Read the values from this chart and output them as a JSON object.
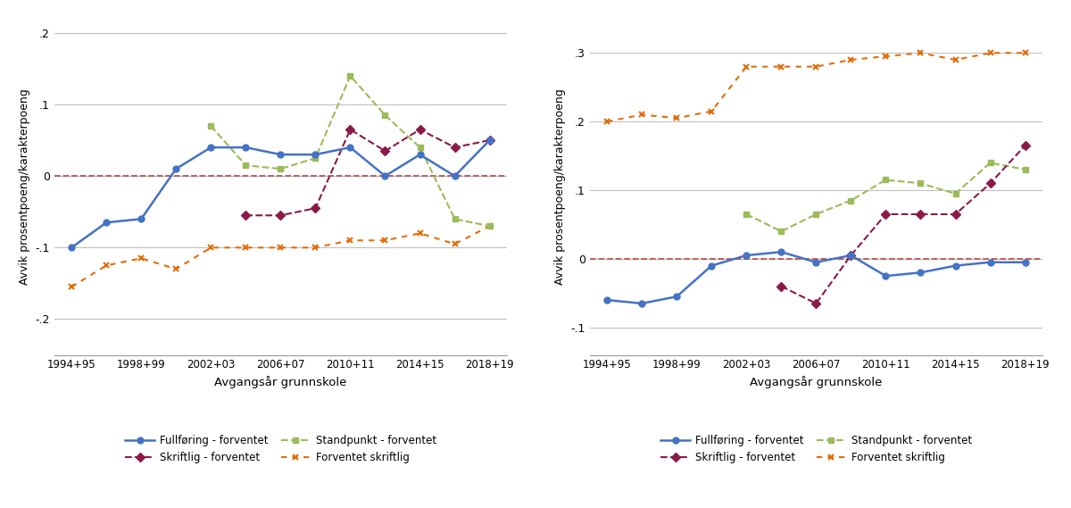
{
  "x_labels": [
    "1994+95",
    "1998+99",
    "2002+03",
    "2006+07",
    "2010+11",
    "2014+15",
    "2018+19"
  ],
  "colors": {
    "fullfoering": "#4472C4",
    "standpunkt": "#9BBB59",
    "skriftlig": "#8B1A4A",
    "forventet": "#E36C09",
    "zero_line": "#C0504D"
  },
  "ylabel": "Avvik prosentpoeng/karakterpoeng",
  "xlabel": "Avgangsår grunnskole",
  "legend": {
    "fullfoering": "Fullføring - forventet",
    "standpunkt": "Standpunkt - forventet",
    "skriftlig": "Skriftlig - forventet",
    "forventet": "Forventet skriftlig"
  },
  "left": {
    "fullfoering_x": [
      0,
      1,
      2,
      3,
      4,
      5,
      6,
      7,
      8,
      9,
      10,
      11,
      12
    ],
    "fullfoering_y": [
      -0.1,
      -0.065,
      -0.06,
      0.01,
      0.04,
      0.04,
      0.03,
      0.03,
      0.04,
      0.0,
      0.03,
      0.0,
      0.05
    ],
    "standpunkt_x": [
      4,
      5,
      6,
      7,
      8,
      9,
      10,
      11,
      12
    ],
    "standpunkt_y": [
      0.07,
      0.015,
      0.01,
      0.025,
      0.14,
      0.085,
      0.04,
      -0.06,
      -0.07
    ],
    "skriftlig_x": [
      5,
      6,
      7,
      8,
      9,
      10,
      11,
      12
    ],
    "skriftlig_y": [
      -0.055,
      -0.055,
      -0.045,
      0.065,
      0.035,
      0.065,
      0.04,
      0.05
    ],
    "forventet_x": [
      0,
      1,
      2,
      3,
      4,
      5,
      6,
      7,
      8,
      9,
      10,
      11,
      12
    ],
    "forventet_y": [
      -0.155,
      -0.125,
      -0.115,
      -0.13,
      -0.1,
      -0.1,
      -0.1,
      -0.1,
      -0.09,
      -0.09,
      -0.08,
      -0.095,
      -0.07
    ],
    "ylim": [
      -0.25,
      0.22
    ],
    "yticks": [
      -0.2,
      -0.1,
      0.0,
      0.1,
      0.2
    ],
    "ytick_labels": [
      "-.2",
      "-.1",
      "0",
      ".1",
      ".2"
    ]
  },
  "right": {
    "fullfoering_x": [
      0,
      1,
      2,
      3,
      4,
      5,
      6,
      7,
      8,
      9,
      10,
      11,
      12
    ],
    "fullfoering_y": [
      -0.06,
      -0.065,
      -0.055,
      -0.01,
      0.005,
      0.01,
      -0.005,
      0.005,
      -0.025,
      -0.02,
      -0.01,
      -0.005,
      -0.005
    ],
    "standpunkt_x": [
      4,
      5,
      6,
      7,
      8,
      9,
      10,
      11,
      12
    ],
    "standpunkt_y": [
      0.065,
      0.04,
      0.065,
      0.085,
      0.115,
      0.11,
      0.095,
      0.14,
      0.13
    ],
    "skriftlig_x": [
      5,
      6,
      7,
      8,
      9,
      10,
      11,
      12
    ],
    "skriftlig_y": [
      -0.04,
      -0.065,
      0.005,
      0.065,
      0.065,
      0.065,
      0.11,
      0.165
    ],
    "forventet_x": [
      0,
      1,
      2,
      3,
      4,
      5,
      6,
      7,
      8,
      9,
      10,
      11,
      12
    ],
    "forventet_y": [
      0.2,
      0.21,
      0.205,
      0.215,
      0.28,
      0.28,
      0.28,
      0.29,
      0.295,
      0.3,
      0.29,
      0.3,
      0.3
    ],
    "ylim": [
      -0.14,
      0.35
    ],
    "yticks": [
      -0.1,
      0.0,
      0.1,
      0.2,
      0.3
    ],
    "ytick_labels": [
      "-.1",
      "0",
      ".1",
      ".2",
      ".3"
    ]
  }
}
